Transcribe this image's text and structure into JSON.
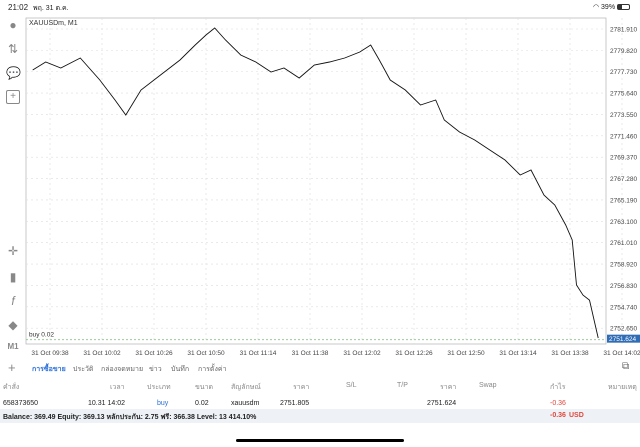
{
  "status_bar": {
    "time": "21:02",
    "date": "พฤ. 31 ต.ค.",
    "battery": "39%",
    "battery_level": 0.39
  },
  "chart_data": {
    "type": "line",
    "title": "XAUUSDm, M1",
    "y_ticks": [
      "2781.910",
      "2779.820",
      "2777.730",
      "2775.640",
      "2773.550",
      "2771.460",
      "2769.370",
      "2767.280",
      "2765.190",
      "2763.100",
      "2761.010",
      "2758.920",
      "2756.830",
      "2754.740",
      "2752.650"
    ],
    "x_ticks": [
      "31 Oct 09:38",
      "31 Oct 10:02",
      "31 Oct 10:26",
      "31 Oct 10:50",
      "31 Oct 11:14",
      "31 Oct 11:38",
      "31 Oct 12:02",
      "31 Oct 12:26",
      "31 Oct 12:50",
      "31 Oct 13:14",
      "31 Oct 13:38",
      "31 Oct 14:02"
    ],
    "ylim": [
      2751.2,
      2783.0
    ],
    "current_price": "2751.624",
    "position_label": "buy 0.02",
    "grid": true,
    "x": [
      "09:30",
      "09:36",
      "09:43",
      "09:52",
      "10:01",
      "10:08",
      "10:13",
      "10:20",
      "10:29",
      "10:38",
      "10:45",
      "10:50",
      "10:54",
      "10:59",
      "11:06",
      "11:13",
      "11:20",
      "11:26",
      "11:33",
      "11:40",
      "11:47",
      "11:54",
      "12:01",
      "12:06",
      "12:10",
      "12:15",
      "12:22",
      "12:29",
      "12:36",
      "12:40",
      "12:47",
      "12:54",
      "13:01",
      "13:08",
      "13:15",
      "13:20",
      "13:26",
      "13:31",
      "13:36",
      "13:39",
      "13:41",
      "13:44",
      "13:47",
      "13:51"
    ],
    "y": [
      2777.9,
      2778.68,
      2778.1,
      2779.07,
      2776.92,
      2774.97,
      2773.5,
      2775.94,
      2777.41,
      2778.88,
      2780.35,
      2781.32,
      2782.01,
      2780.83,
      2779.37,
      2778.68,
      2777.7,
      2778.1,
      2777.12,
      2778.39,
      2778.68,
      2779.07,
      2779.66,
      2780.35,
      2778.88,
      2776.92,
      2775.94,
      2774.48,
      2774.97,
      2773.01,
      2771.84,
      2771.05,
      2770.08,
      2769.1,
      2767.63,
      2768.12,
      2765.67,
      2764.7,
      2762.74,
      2761.27,
      2756.87,
      2755.89,
      2755.4,
      2751.69
    ]
  },
  "toolbar": {
    "timeframe": "M1"
  },
  "tabs": [
    "การซื้อขาย",
    "ประวัติ",
    "กล่องจดหมาย",
    "ข่าว",
    "บันทึก",
    "การตั้งค่า"
  ],
  "columns": [
    "คำสั่ง",
    "เวลา",
    "ประเภท",
    "ขนาด",
    "สัญลักษณ์",
    "ราคา",
    "S/L",
    "T/P",
    "ราคา",
    "Swap",
    "กำไร",
    "หมายเหตุ"
  ],
  "order": {
    "id": "658373650",
    "time": "10.31 14:02",
    "type": "buy",
    "volume": "0.02",
    "symbol": "xauusdm",
    "open_price": "2751.805",
    "sl": "",
    "tp": "",
    "price": "2751.624",
    "swap": "",
    "profit": "-0.36"
  },
  "balance": {
    "text": "Balance: 369.49 Equity: 369.13 หลักประกัน: 2.75 ฟรี: 366.38 Level: 13 414.10%",
    "profit": "-0.36",
    "currency": "USD"
  },
  "colors": {
    "accent": "#2a6fd6",
    "loss": "#e0463c",
    "price_tag": "#2f6db5"
  }
}
